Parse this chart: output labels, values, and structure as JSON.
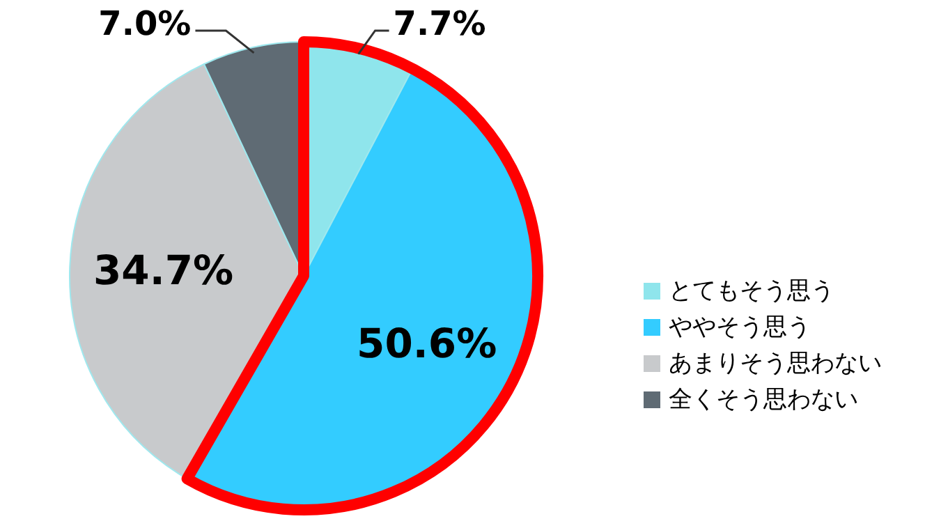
{
  "chart_data": {
    "type": "pie",
    "categories": [
      "とてもそう思う",
      "ややそう思う",
      "あまりそう思わない",
      "全くそう思わない"
    ],
    "values": [
      7.7,
      50.6,
      34.7,
      7.0
    ],
    "value_labels": [
      "7.7%",
      "50.6%",
      "34.7%",
      "7.0%"
    ],
    "colors": [
      "#8fe5ec",
      "#33ccff",
      "#c8cacc",
      "#5f6b74"
    ],
    "legend": "right"
  }
}
